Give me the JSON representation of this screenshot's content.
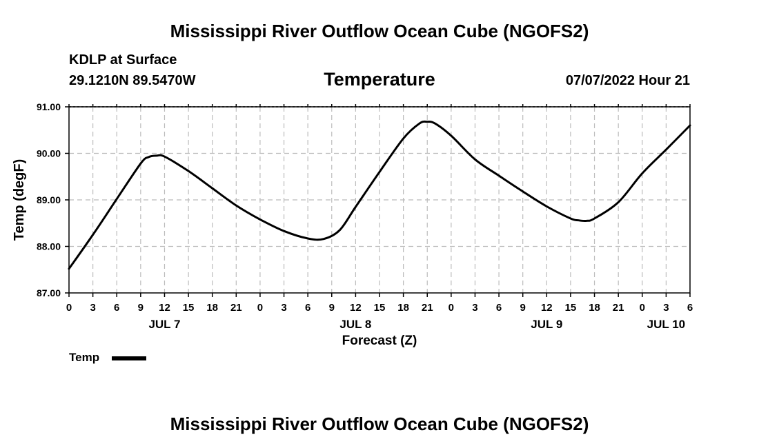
{
  "header": {
    "title": "Mississippi River Outflow Ocean Cube (NGOFS2)",
    "station": "KDLP at Surface",
    "coords": "29.1210N  89.5470W",
    "forecast_time": "07/07/2022 Hour 21"
  },
  "footer": {
    "title": "Mississippi River Outflow Ocean Cube (NGOFS2)"
  },
  "chart_data": {
    "type": "line",
    "title": "Temperature",
    "xlabel": "Forecast (Z)",
    "ylabel": "Temp (degF)",
    "ylim": [
      87.0,
      91.0
    ],
    "xlim": [
      0,
      78
    ],
    "y_ticks": [
      "87.00",
      "88.00",
      "89.00",
      "90.00",
      "91.00"
    ],
    "y_tick_values": [
      87,
      88,
      89,
      90,
      91
    ],
    "x_tick_labels": [
      "0",
      "3",
      "6",
      "9",
      "12",
      "15",
      "18",
      "21",
      "0",
      "3",
      "6",
      "9",
      "12",
      "15",
      "18",
      "21",
      "0",
      "3",
      "6",
      "9",
      "12",
      "15",
      "18",
      "21",
      "0",
      "3",
      "6"
    ],
    "x_tick_hours": [
      0,
      3,
      6,
      9,
      12,
      15,
      18,
      21,
      24,
      27,
      30,
      33,
      36,
      39,
      42,
      45,
      48,
      51,
      54,
      57,
      60,
      63,
      66,
      69,
      72,
      75,
      78
    ],
    "day_labels": [
      {
        "label": "JUL 7",
        "hour": 12
      },
      {
        "label": "JUL 8",
        "hour": 36
      },
      {
        "label": "JUL 9",
        "hour": 60
      },
      {
        "label": "JUL 10",
        "hour": 75
      }
    ],
    "grid": true,
    "legend": "bottom-left",
    "series": [
      {
        "name": "Temp",
        "x": [
          0,
          3,
          6,
          9,
          10,
          11,
          12,
          15,
          18,
          21,
          24,
          27,
          30,
          32,
          34,
          36,
          39,
          42,
          44,
          45,
          46,
          48,
          51,
          54,
          57,
          60,
          63,
          64,
          65,
          66,
          69,
          72,
          75,
          78
        ],
        "values": [
          87.52,
          88.25,
          89.02,
          89.78,
          89.92,
          89.95,
          89.93,
          89.62,
          89.25,
          88.88,
          88.58,
          88.33,
          88.17,
          88.16,
          88.35,
          88.85,
          89.6,
          90.32,
          90.64,
          90.68,
          90.64,
          90.38,
          89.87,
          89.52,
          89.18,
          88.86,
          88.6,
          88.56,
          88.55,
          88.6,
          88.95,
          89.57,
          90.08,
          90.6
        ]
      }
    ]
  }
}
